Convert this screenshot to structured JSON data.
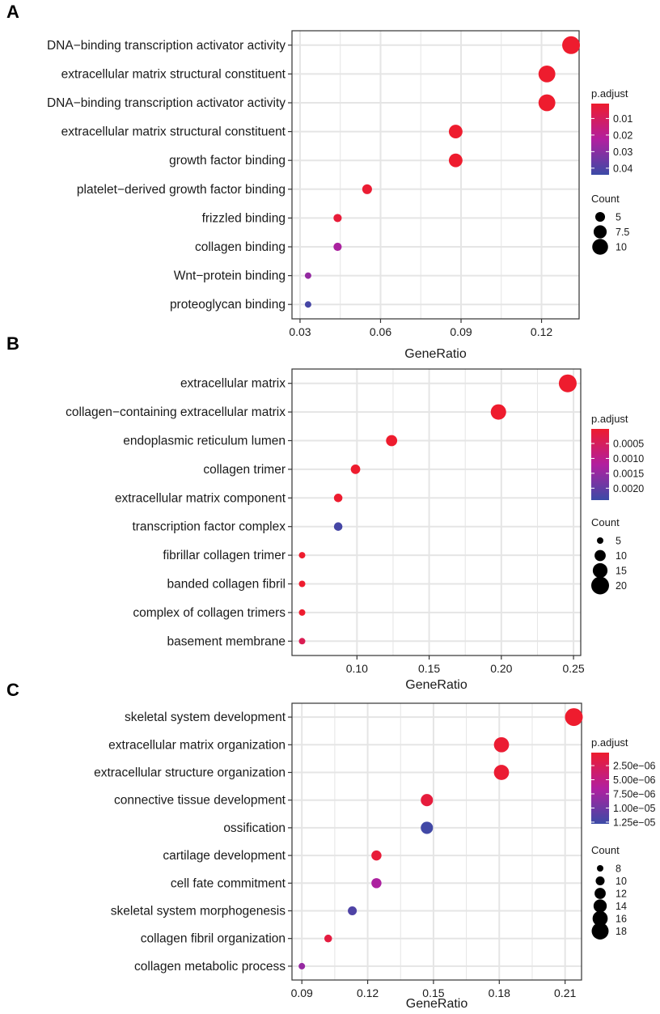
{
  "colors": {
    "low": "#3b4aa6",
    "mid": "#b21f9f",
    "high": "#ee1c2e",
    "grid": "#e5e5e5",
    "border": "#333333"
  },
  "chart_data": [
    {
      "panel": "A",
      "type": "scatter",
      "xlabel": "GeneRatio",
      "xticks": [
        0.03,
        0.06,
        0.09,
        0.12
      ],
      "xtick_labels": [
        "0.03",
        "0.06",
        "0.09",
        "0.12"
      ],
      "xlim": [
        0.027,
        0.134
      ],
      "categories": [
        "DNA−binding transcription activator activity",
        "extracellular matrix structural constituent",
        "DNA−binding transcription activator activity",
        "extracellular matrix structural constituent",
        "growth factor binding",
        "platelet−derived growth factor binding",
        "frizzled binding",
        "collagen binding",
        "Wnt−protein binding",
        "proteoglycan binding"
      ],
      "x": [
        0.131,
        0.122,
        0.122,
        0.088,
        0.088,
        0.055,
        0.044,
        0.044,
        0.033,
        0.033
      ],
      "count": [
        12,
        11,
        11,
        8,
        8,
        5,
        4,
        4,
        3,
        3
      ],
      "p_adjust": [
        0.001,
        0.001,
        0.001,
        0.001,
        0.001,
        0.002,
        0.003,
        0.024,
        0.028,
        0.042
      ],
      "color_legend": {
        "title": "p.adjust",
        "ticks": [
          0.01,
          0.02,
          0.03,
          0.04
        ],
        "tick_labels": [
          "0.01",
          "0.02",
          "0.03",
          "0.04"
        ],
        "min": 0.001,
        "max": 0.044
      },
      "size_legend": {
        "title": "Count",
        "values": [
          5,
          7.5,
          10
        ],
        "labels": [
          "5",
          "7.5",
          "10"
        ]
      }
    },
    {
      "panel": "B",
      "type": "scatter",
      "xlabel": "GeneRatio",
      "xticks": [
        0.1,
        0.15,
        0.2,
        0.25
      ],
      "xtick_labels": [
        "0.10",
        "0.15",
        "0.20",
        "0.25"
      ],
      "xlim": [
        0.055,
        0.255
      ],
      "categories": [
        "extracellular matrix",
        "collagen−containing extracellular matrix",
        "endoplasmic reticulum lumen",
        "collagen trimer",
        "extracellular matrix component",
        "transcription factor complex",
        "fibrillar collagen trimer",
        "banded collagen fibril",
        "complex of collagen trimers",
        "basement membrane"
      ],
      "x": [
        0.246,
        0.198,
        0.124,
        0.099,
        0.087,
        0.087,
        0.062,
        0.062,
        0.062,
        0.062
      ],
      "count": [
        20,
        16,
        10,
        8,
        7,
        7,
        5,
        5,
        5,
        5
      ],
      "p_adjust": [
        1e-05,
        1e-05,
        1e-05,
        1e-05,
        2e-05,
        0.0023,
        1e-05,
        1e-05,
        1e-05,
        0.0004
      ],
      "color_legend": {
        "title": "p.adjust",
        "ticks": [
          0.0005,
          0.001,
          0.0015,
          0.002
        ],
        "tick_labels": [
          "0.0005",
          "0.0010",
          "0.0015",
          "0.0020"
        ],
        "min": 1e-05,
        "max": 0.0024
      },
      "size_legend": {
        "title": "Count",
        "values": [
          5,
          10,
          15,
          20
        ],
        "labels": [
          "5",
          "10",
          "15",
          "20"
        ]
      }
    },
    {
      "panel": "C",
      "type": "scatter",
      "xlabel": "GeneRatio",
      "xticks": [
        0.09,
        0.12,
        0.15,
        0.18,
        0.21
      ],
      "xtick_labels": [
        "0.09",
        "0.12",
        "0.15",
        "0.18",
        "0.21"
      ],
      "xlim": [
        0.0855,
        0.2175
      ],
      "categories": [
        "skeletal system development",
        "extracellular matrix organization",
        "extracellular structure organization",
        "connective tissue development",
        "ossification",
        "cartilage development",
        "cell fate commitment",
        "skeletal system morphogenesis",
        "collagen fibril organization",
        "collagen metabolic process"
      ],
      "x": [
        0.214,
        0.181,
        0.181,
        0.147,
        0.147,
        0.124,
        0.124,
        0.113,
        0.102,
        0.09
      ],
      "count": [
        19,
        16,
        16,
        13,
        13,
        11,
        11,
        10,
        9,
        8
      ],
      "p_adjust": [
        2e-07,
        5e-07,
        5e-07,
        1e-06,
        1.25e-05,
        8e-07,
        6.8e-06,
        1.18e-05,
        1.2e-06,
        8e-06
      ],
      "color_legend": {
        "title": "p.adjust",
        "ticks": [
          2.5e-06,
          5e-06,
          7.5e-06,
          1e-05,
          1.25e-05
        ],
        "tick_labels": [
          "2.50e−06",
          "5.00e−06",
          "7.50e−06",
          "1.00e−05",
          "1.25e−05"
        ],
        "min": 2e-07,
        "max": 1.28e-05
      },
      "size_legend": {
        "title": "Count",
        "values": [
          8,
          10,
          12,
          14,
          16,
          18
        ],
        "labels": [
          "8",
          "10",
          "12",
          "14",
          "16",
          "18"
        ]
      }
    }
  ]
}
